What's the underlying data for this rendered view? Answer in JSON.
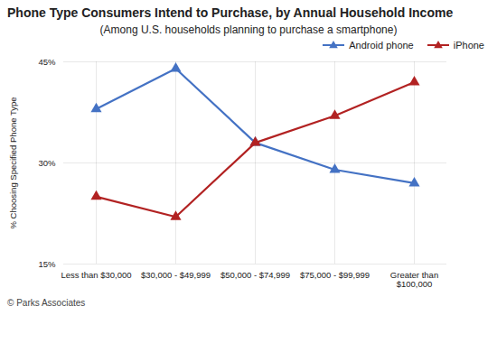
{
  "chart_data": {
    "type": "line",
    "title": "Phone Type Consumers Intend to Purchase, by Annual Household Income",
    "subtitle": "(Among U.S. households planning to purchase a smartphone)",
    "caption": "© Parks Associates",
    "ylabel": "% Choosing Specified Phone Type",
    "categories": [
      "Less than $30,000",
      "$30,000 - $49,999",
      "$50,000 - $74,999",
      "$75,000 - $99,999",
      "Greater than\n$100,000"
    ],
    "series": [
      {
        "name": "Android phone",
        "color": "#4472C4",
        "marker": "triangle",
        "values": [
          38,
          44,
          33,
          29,
          27
        ]
      },
      {
        "name": "iPhone",
        "color": "#B22222",
        "marker": "triangle",
        "values": [
          25,
          22,
          33,
          37,
          42
        ]
      }
    ],
    "ylim": [
      15,
      45
    ],
    "yticks": [
      {
        "value": 15,
        "label": "15%"
      },
      {
        "value": 30,
        "label": "30%"
      },
      {
        "value": 45,
        "label": "45%"
      }
    ],
    "grid": true,
    "legend": "upper right"
  }
}
